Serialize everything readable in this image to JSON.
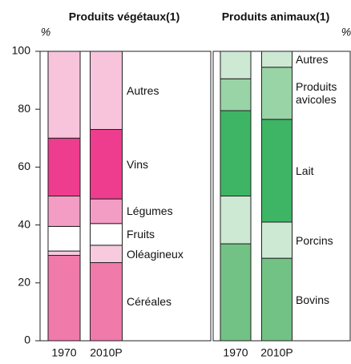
{
  "chart_data": [
    {
      "type": "bar",
      "stacked": true,
      "title": "Produits végétaux(1)",
      "y_label": "%",
      "categories": [
        "1970",
        "2010P"
      ],
      "ylim": [
        0,
        100
      ],
      "yticks": [
        0,
        20,
        40,
        60,
        80,
        100
      ],
      "series": [
        {
          "name": "Céréales",
          "color": "#f07aaa",
          "values": [
            29.5,
            27
          ]
        },
        {
          "name": "Oléagineux",
          "color": "#f8cadd",
          "values": [
            1.5,
            6
          ]
        },
        {
          "name": "Fruits",
          "color": "#ffffff",
          "values": [
            8.5,
            7.5
          ]
        },
        {
          "name": "Légumes",
          "color": "#f39dc5",
          "values": [
            10.5,
            8.5
          ]
        },
        {
          "name": "Vins",
          "color": "#ee3c8e",
          "values": [
            20,
            24
          ]
        },
        {
          "name": "Autres",
          "color": "#f7c4dc",
          "values": [
            30,
            27
          ]
        }
      ]
    },
    {
      "type": "bar",
      "stacked": true,
      "title": "Produits animaux(1)",
      "y_label": "%",
      "categories": [
        "1970",
        "2010P"
      ],
      "ylim": [
        0,
        100
      ],
      "series": [
        {
          "name": "Bovins",
          "color": "#72c285",
          "values": [
            33.5,
            28.5
          ]
        },
        {
          "name": "Porcins",
          "color": "#cde9d3",
          "values": [
            16.5,
            12.5
          ]
        },
        {
          "name": "Lait",
          "color": "#3db565",
          "values": [
            29.5,
            35.5
          ]
        },
        {
          "name": "Produits avicoles",
          "color": "#99d4a6",
          "values": [
            11,
            18
          ]
        },
        {
          "name": "Autres",
          "color": "#cde9d3",
          "values": [
            9.5,
            5.5
          ]
        }
      ]
    }
  ]
}
